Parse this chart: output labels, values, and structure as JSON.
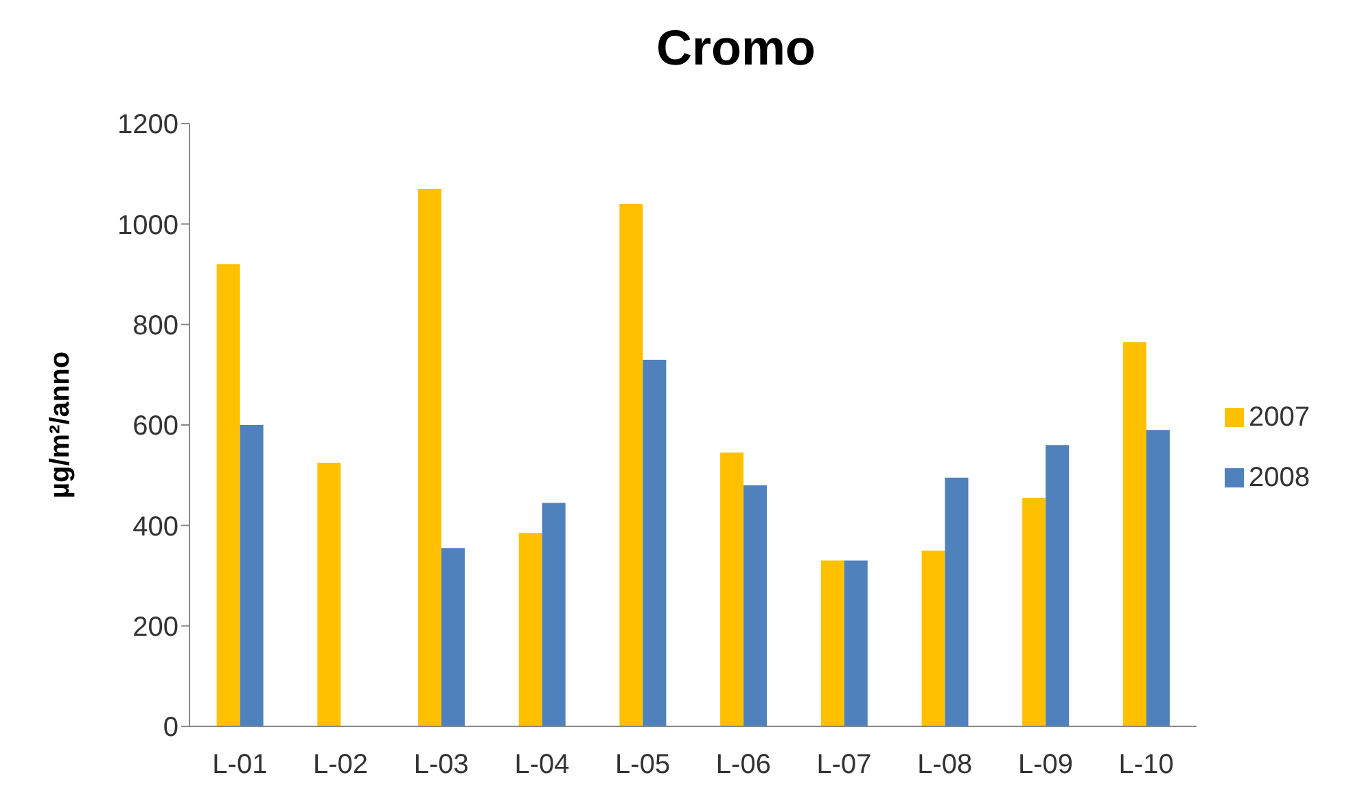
{
  "chart_data": {
    "type": "bar",
    "title": "Cromo",
    "ylabel": "µg/m²/anno",
    "categories": [
      "L-01",
      "L-02",
      "L-03",
      "L-04",
      "L-05",
      "L-06",
      "L-07",
      "L-08",
      "L-09",
      "L-10"
    ],
    "series": [
      {
        "name": "2007",
        "color": "#ffc000",
        "values": [
          920,
          525,
          1070,
          385,
          1040,
          545,
          330,
          350,
          455,
          765
        ]
      },
      {
        "name": "2008",
        "color": "#4f81bd",
        "values": [
          600,
          null,
          355,
          445,
          730,
          480,
          330,
          495,
          560,
          590
        ]
      }
    ],
    "ylim": [
      0,
      1200
    ],
    "yticks": [
      0,
      200,
      400,
      600,
      800,
      1000,
      1200
    ],
    "grid": false,
    "legend": "right"
  }
}
